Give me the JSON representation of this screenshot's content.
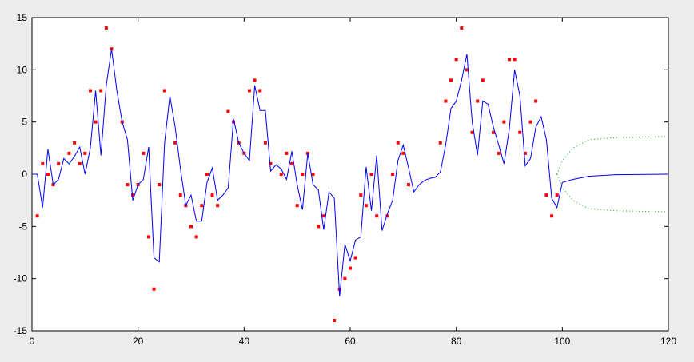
{
  "chart_data": {
    "type": "line",
    "xlim": [
      0,
      120
    ],
    "ylim": [
      -15,
      15
    ],
    "xticks": [
      0,
      20,
      40,
      60,
      80,
      100,
      120
    ],
    "yticks": [
      -15,
      -10,
      -5,
      0,
      5,
      10,
      15
    ],
    "series": [
      {
        "type": "scatter",
        "color": "#ff0000",
        "x": [
          1,
          2,
          3,
          4,
          5,
          7,
          8,
          9,
          10,
          11,
          12,
          13,
          14,
          15,
          17,
          18,
          19,
          20,
          21,
          22,
          23,
          24,
          25,
          27,
          28,
          29,
          30,
          31,
          32,
          33,
          34,
          35,
          37,
          38,
          39,
          40,
          41,
          42,
          43,
          44,
          45,
          47,
          48,
          49,
          50,
          51,
          52,
          53,
          54,
          55,
          57,
          58,
          59,
          60,
          61,
          62,
          63,
          64,
          65,
          67,
          68,
          69,
          70,
          71,
          77,
          78,
          79,
          80,
          81,
          82,
          83,
          84,
          85,
          87,
          88,
          89,
          90,
          91,
          92,
          93,
          94,
          95,
          97,
          98,
          99
        ],
        "values": [
          -4,
          1,
          0,
          -1,
          1,
          2,
          3,
          1,
          2,
          8,
          5,
          8,
          14,
          12,
          5,
          -1,
          -2,
          -1,
          2,
          -6,
          -11,
          -1,
          8,
          3,
          -2,
          -3,
          -5,
          -6,
          -3,
          0,
          -2,
          -3,
          6,
          5,
          3,
          2,
          8,
          9,
          8,
          3,
          1,
          0,
          2,
          1,
          -3,
          0,
          2,
          0,
          -5,
          -4,
          -14,
          -11,
          -10,
          -9,
          -8,
          -2,
          -3,
          0,
          -4,
          -4,
          0,
          3,
          2,
          -1,
          3,
          7,
          9,
          11,
          14,
          10,
          4,
          7,
          9,
          4,
          2,
          5,
          11,
          11,
          4,
          2,
          5,
          7,
          -2,
          -4,
          -2
        ]
      },
      {
        "type": "line",
        "color": "#0000ff",
        "dash": "none",
        "x": [
          0,
          1,
          2,
          3,
          4,
          5,
          6,
          7,
          8,
          9,
          10,
          11,
          12,
          13,
          14,
          15,
          16,
          17,
          18,
          19,
          20,
          21,
          22,
          23,
          24,
          25,
          26,
          27,
          28,
          29,
          30,
          31,
          32,
          33,
          34,
          35,
          36,
          37,
          38,
          39,
          40,
          41,
          42,
          43,
          44,
          45,
          46,
          47,
          48,
          49,
          50,
          51,
          52,
          53,
          54,
          55,
          56,
          57,
          58,
          59,
          60,
          61,
          62,
          63,
          64,
          65,
          66,
          67,
          68,
          69,
          70,
          71,
          72,
          73,
          74,
          75,
          76,
          77,
          78,
          79,
          80,
          81,
          82,
          83,
          84,
          85,
          86,
          87,
          88,
          89,
          90,
          91,
          92,
          93,
          94,
          95,
          96,
          97,
          98,
          99,
          100,
          102,
          105,
          110,
          120
        ],
        "values": [
          0,
          0,
          -3.2,
          2.4,
          -1,
          -0.5,
          1.5,
          1,
          1.7,
          2.6,
          0,
          2.5,
          8,
          1.8,
          8.5,
          12,
          8,
          5,
          3.3,
          -2.5,
          -1,
          -0.5,
          2.6,
          -8,
          -8.4,
          3,
          7.5,
          4.5,
          0.5,
          -3,
          -2,
          -4.5,
          -4.5,
          -0.8,
          0.6,
          -2.5,
          -2,
          -1.3,
          5.3,
          3,
          2,
          1.3,
          8.5,
          6.1,
          6.1,
          0.3,
          0.9,
          0.5,
          -0.5,
          2.2,
          -1,
          -3.4,
          2,
          -1,
          -1.5,
          -5.3,
          -1.7,
          -2.3,
          -11.7,
          -6.7,
          -8.3,
          -6.3,
          -6,
          0.7,
          -3.5,
          1.8,
          -5.4,
          -3.8,
          -2.5,
          1.3,
          2.8,
          0.6,
          -1.7,
          -1,
          -0.6,
          -0.4,
          -0.3,
          0.2,
          2.8,
          6.3,
          7,
          9,
          11.5,
          5,
          1.8,
          7,
          6.7,
          4.5,
          2.8,
          1,
          4.3,
          10,
          7.5,
          0.8,
          1.5,
          4.5,
          5.5,
          3.3,
          -2.3,
          -3.2,
          -0.8,
          -0.5,
          -0.2,
          -0.05,
          0
        ]
      },
      {
        "type": "line",
        "color": "#00b000",
        "dash": "1 3",
        "x": [
          99,
          100,
          102,
          105,
          110,
          120
        ],
        "values": [
          0,
          1.3,
          2.5,
          3.3,
          3.5,
          3.6
        ]
      },
      {
        "type": "line",
        "color": "#00b000",
        "dash": "1 3",
        "x": [
          99,
          100,
          102,
          105,
          110,
          120
        ],
        "values": [
          0,
          -1.3,
          -2.5,
          -3.3,
          -3.5,
          -3.6
        ]
      }
    ]
  }
}
